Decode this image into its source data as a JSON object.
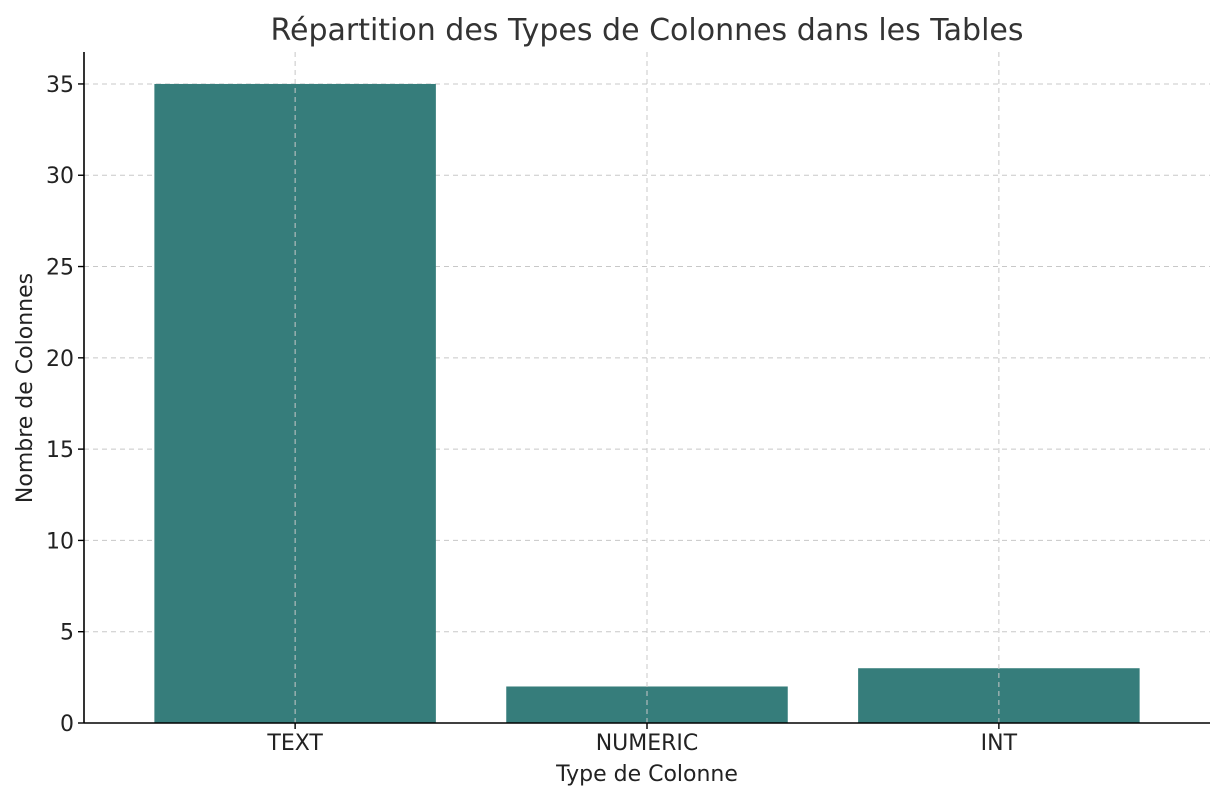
{
  "chart_data": {
    "type": "bar",
    "title": "Répartition des Types de Colonnes dans les Tables",
    "xlabel": "Type de Colonne",
    "ylabel": "Nombre de Colonnes",
    "categories": [
      "TEXT",
      "NUMERIC",
      "INT"
    ],
    "values": [
      35,
      2,
      3
    ],
    "ylim": [
      0,
      36.75
    ],
    "yticks": [
      0,
      5,
      10,
      15,
      20,
      25,
      30,
      35
    ],
    "grid": true,
    "legend": "none",
    "bar_color": "#367d7b"
  }
}
